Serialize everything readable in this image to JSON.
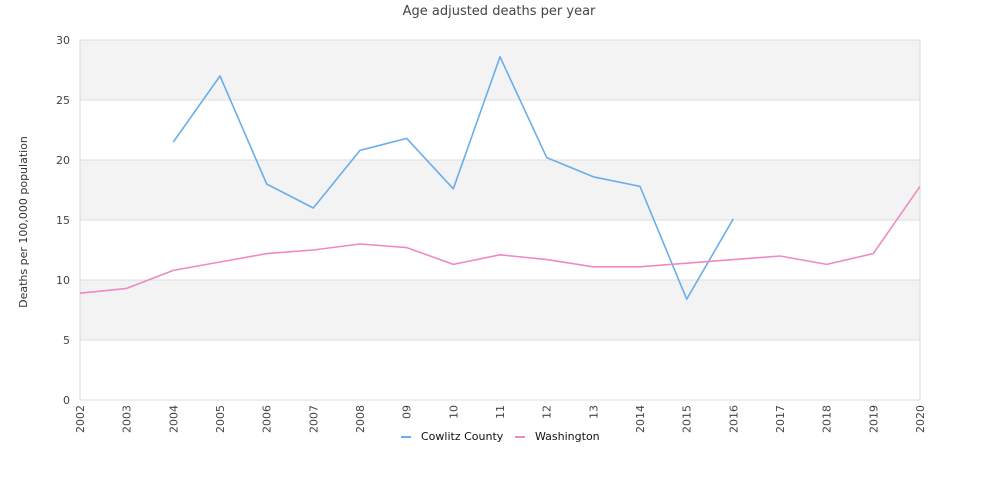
{
  "chart_data": {
    "type": "line",
    "title": "Age adjusted deaths per year",
    "xlabel": "",
    "ylabel": "Deaths per 100,000 population",
    "ylim": [
      0,
      30
    ],
    "yticks": [
      "0",
      "5",
      "10",
      "15",
      "20",
      "25",
      "30"
    ],
    "categories": [
      "2002",
      "2003",
      "2004",
      "2005",
      "2006",
      "2007",
      "2008",
      "2009",
      "2010",
      "2011",
      "2012",
      "2013",
      "2014",
      "2015",
      "2016",
      "2017",
      "2018",
      "2019",
      "2020"
    ],
    "xtick_labels": [
      "2002",
      "2003",
      "2004",
      "2005",
      "2006",
      "2007",
      "2008",
      "09",
      "10",
      "11",
      "12",
      "13",
      "2014",
      "2015",
      "2016",
      "2017",
      "2018",
      "2019",
      "2020"
    ],
    "grid": true,
    "legend_position": "bottom",
    "series": [
      {
        "name": "Cowlitz County",
        "color": "#6aaeec",
        "values": [
          null,
          null,
          21.5,
          27.0,
          18.0,
          16.0,
          20.8,
          21.8,
          17.6,
          28.6,
          20.2,
          18.6,
          17.8,
          8.4,
          15.1,
          null,
          null,
          null,
          null
        ]
      },
      {
        "name": "Washington",
        "color": "#ef8ac0",
        "values": [
          8.9,
          9.3,
          10.8,
          11.5,
          12.2,
          12.5,
          13.0,
          12.7,
          11.3,
          12.1,
          11.7,
          11.1,
          11.1,
          11.4,
          11.7,
          12.0,
          11.3,
          12.2,
          17.8
        ]
      }
    ]
  }
}
